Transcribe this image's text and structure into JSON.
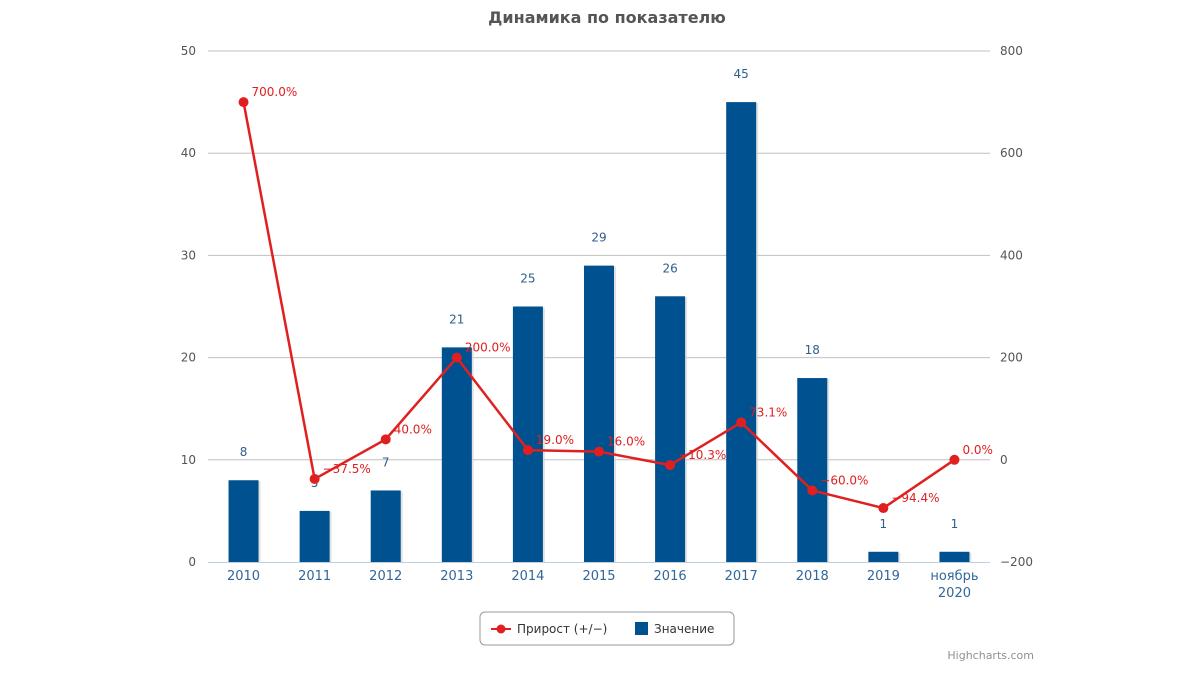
{
  "chart_data": {
    "type": "bar",
    "title": "Динамика по показателю",
    "categories": [
      "2010",
      "2011",
      "2012",
      "2013",
      "2014",
      "2015",
      "2016",
      "2017",
      "2018",
      "2019",
      "ноябрь 2020"
    ],
    "series": [
      {
        "name": "Значение",
        "type": "bar",
        "axis": "left",
        "color": "#00518f",
        "values": [
          8,
          5,
          7,
          21,
          25,
          29,
          26,
          45,
          18,
          1,
          1
        ],
        "labels": [
          "8",
          "5",
          "7",
          "21",
          "25",
          "29",
          "26",
          "45",
          "18",
          "1",
          "1"
        ]
      },
      {
        "name": "Прирост (+/−)",
        "type": "line",
        "axis": "right",
        "color": "#e02020",
        "values": [
          700.0,
          -37.5,
          40.0,
          200.0,
          19.0,
          16.0,
          -10.3,
          73.1,
          -60.0,
          -94.4,
          0.0
        ],
        "labels": [
          "700.0%",
          "−37.5%",
          "40.0%",
          "200.0%",
          "19.0%",
          "16.0%",
          "−10.3%",
          "73.1%",
          "−60.0%",
          "−94.4%",
          "0.0%"
        ]
      }
    ],
    "y_left": {
      "min": 0,
      "max": 50,
      "ticks": [
        0,
        10,
        20,
        30,
        40,
        50
      ],
      "tick_labels": [
        "0",
        "10",
        "20",
        "30",
        "40",
        "50"
      ]
    },
    "y_right": {
      "min": -200,
      "max": 800,
      "ticks": [
        -200,
        0,
        200,
        400,
        600,
        800
      ],
      "tick_labels": [
        "−200",
        "0",
        "200",
        "400",
        "600",
        "800"
      ]
    },
    "grid": true,
    "legend": {
      "position": "bottom-center",
      "items": [
        "Прирост (+/−)",
        "Значение"
      ]
    },
    "credits": "Highcharts.com"
  }
}
